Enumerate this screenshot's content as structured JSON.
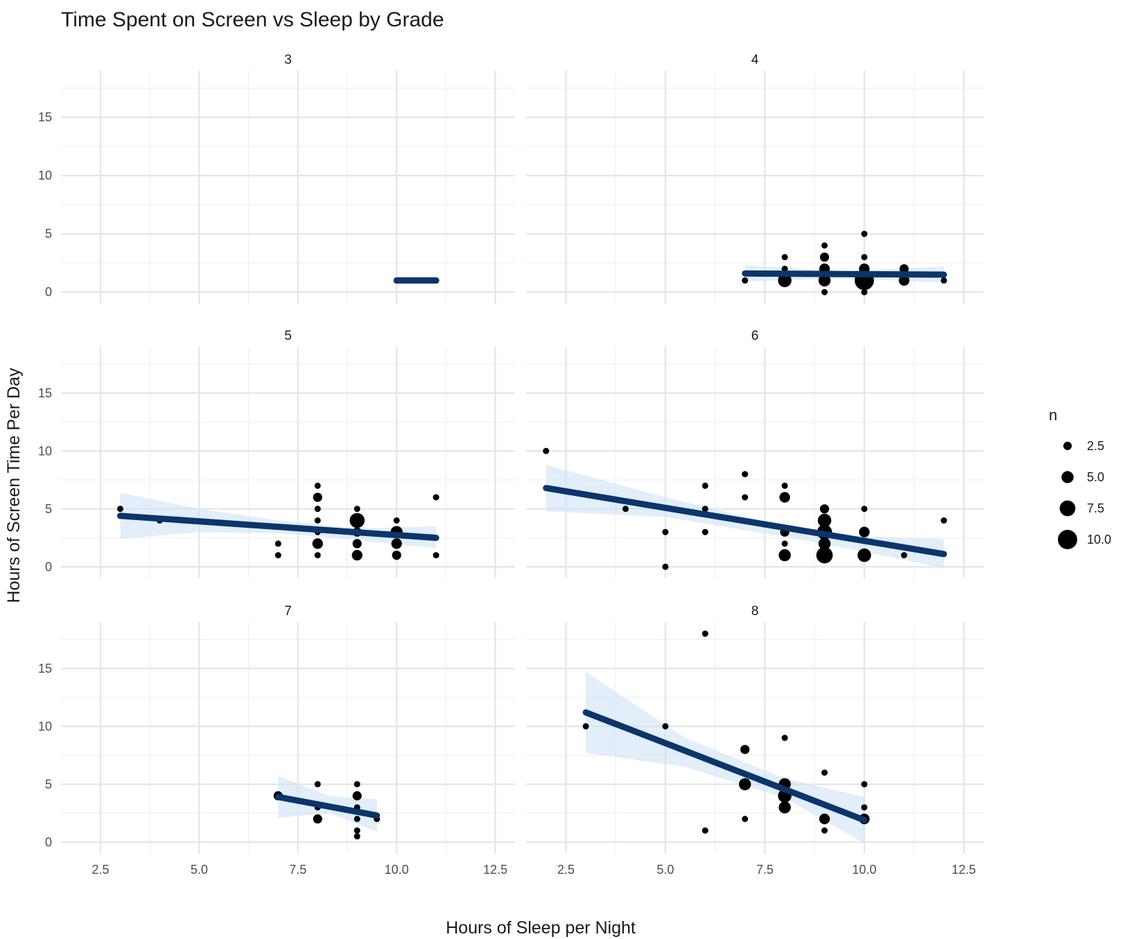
{
  "chart_data": {
    "type": "scatter",
    "title": "Time Spent on Screen vs Sleep by Grade",
    "xlabel": "Hours of Sleep per Night",
    "ylabel": "Hours of Screen Time Per Day",
    "xlim": [
      1.5,
      13
    ],
    "ylim": [
      -1,
      19
    ],
    "x_ticks": [
      "2.5",
      "5.0",
      "7.5",
      "10.0",
      "12.5"
    ],
    "y_ticks": [
      "0",
      "5",
      "10",
      "15"
    ],
    "grid": true,
    "legend": {
      "title": "n",
      "placement": "right",
      "entries": [
        "2.5",
        "5.0",
        "7.5",
        "10.0"
      ],
      "entry_values": [
        2.5,
        5.0,
        7.5,
        10.0
      ]
    },
    "point_color": "#000000",
    "trend_color": "#0b356b",
    "band_color": "#cfe3f5",
    "panels": [
      {
        "grade": "3",
        "points": [
          {
            "x": 10,
            "y": 1,
            "n": 1
          },
          {
            "x": 11,
            "y": 1,
            "n": 1
          }
        ],
        "trend": [
          [
            10,
            1
          ],
          [
            11,
            1
          ]
        ],
        "band": []
      },
      {
        "grade": "4",
        "points": [
          {
            "x": 7,
            "y": 1,
            "n": 1
          },
          {
            "x": 8,
            "y": 1,
            "n": 6
          },
          {
            "x": 8,
            "y": 2,
            "n": 1
          },
          {
            "x": 8,
            "y": 3,
            "n": 1
          },
          {
            "x": 9,
            "y": 0,
            "n": 1
          },
          {
            "x": 9,
            "y": 1,
            "n": 5
          },
          {
            "x": 9,
            "y": 2,
            "n": 4
          },
          {
            "x": 9,
            "y": 3,
            "n": 3
          },
          {
            "x": 9,
            "y": 4,
            "n": 1
          },
          {
            "x": 10,
            "y": 0,
            "n": 1
          },
          {
            "x": 10,
            "y": 1,
            "n": 10
          },
          {
            "x": 10,
            "y": 2,
            "n": 4
          },
          {
            "x": 10,
            "y": 3,
            "n": 1
          },
          {
            "x": 10,
            "y": 5,
            "n": 1
          },
          {
            "x": 11,
            "y": 1,
            "n": 4
          },
          {
            "x": 11,
            "y": 2,
            "n": 3
          },
          {
            "x": 12,
            "y": 1,
            "n": 1
          }
        ],
        "trend": [
          [
            7,
            1.6
          ],
          [
            12,
            1.5
          ]
        ],
        "band": [
          [
            7,
            2.3,
            0.9
          ],
          [
            9.5,
            1.8,
            1.2
          ],
          [
            12,
            2.2,
            0.8
          ]
        ]
      },
      {
        "grade": "5",
        "points": [
          {
            "x": 3,
            "y": 5,
            "n": 1
          },
          {
            "x": 4,
            "y": 4,
            "n": 1
          },
          {
            "x": 7,
            "y": 1,
            "n": 1
          },
          {
            "x": 7,
            "y": 2,
            "n": 1
          },
          {
            "x": 8,
            "y": 1,
            "n": 1
          },
          {
            "x": 8,
            "y": 2,
            "n": 4
          },
          {
            "x": 8,
            "y": 3,
            "n": 1
          },
          {
            "x": 8,
            "y": 4,
            "n": 1
          },
          {
            "x": 8,
            "y": 5,
            "n": 1
          },
          {
            "x": 8,
            "y": 6,
            "n": 3
          },
          {
            "x": 8,
            "y": 7,
            "n": 1
          },
          {
            "x": 9,
            "y": 1,
            "n": 4
          },
          {
            "x": 9,
            "y": 2,
            "n": 3
          },
          {
            "x": 9,
            "y": 3,
            "n": 3
          },
          {
            "x": 9,
            "y": 4,
            "n": 7
          },
          {
            "x": 9,
            "y": 5,
            "n": 1
          },
          {
            "x": 10,
            "y": 1,
            "n": 3
          },
          {
            "x": 10,
            "y": 2,
            "n": 4
          },
          {
            "x": 10,
            "y": 3,
            "n": 5
          },
          {
            "x": 10,
            "y": 4,
            "n": 1
          },
          {
            "x": 11,
            "y": 1,
            "n": 1
          },
          {
            "x": 11,
            "y": 6,
            "n": 1
          }
        ],
        "trend": [
          [
            3,
            4.4
          ],
          [
            11,
            2.5
          ]
        ],
        "band": [
          [
            3,
            6.4,
            2.4
          ],
          [
            5,
            5.0,
            3.0
          ],
          [
            7,
            4.0,
            2.9
          ],
          [
            9,
            3.3,
            2.3
          ],
          [
            11,
            3.5,
            1.6
          ]
        ]
      },
      {
        "grade": "6",
        "points": [
          {
            "x": 2,
            "y": 10,
            "n": 1
          },
          {
            "x": 4,
            "y": 5,
            "n": 1
          },
          {
            "x": 5,
            "y": 0,
            "n": 1
          },
          {
            "x": 5,
            "y": 3,
            "n": 1
          },
          {
            "x": 6,
            "y": 3,
            "n": 1
          },
          {
            "x": 6,
            "y": 5,
            "n": 1
          },
          {
            "x": 6,
            "y": 7,
            "n": 1
          },
          {
            "x": 7,
            "y": 6,
            "n": 1
          },
          {
            "x": 7,
            "y": 8,
            "n": 1
          },
          {
            "x": 8,
            "y": 1,
            "n": 5
          },
          {
            "x": 8,
            "y": 2,
            "n": 1
          },
          {
            "x": 8,
            "y": 3,
            "n": 3
          },
          {
            "x": 8,
            "y": 6,
            "n": 4
          },
          {
            "x": 8,
            "y": 7,
            "n": 1
          },
          {
            "x": 9,
            "y": 1,
            "n": 8
          },
          {
            "x": 9,
            "y": 2,
            "n": 5
          },
          {
            "x": 9,
            "y": 3,
            "n": 7
          },
          {
            "x": 9,
            "y": 4,
            "n": 6
          },
          {
            "x": 9,
            "y": 5,
            "n": 3
          },
          {
            "x": 10,
            "y": 1,
            "n": 6
          },
          {
            "x": 10,
            "y": 3,
            "n": 4
          },
          {
            "x": 10,
            "y": 5,
            "n": 1
          },
          {
            "x": 11,
            "y": 1,
            "n": 1
          },
          {
            "x": 12,
            "y": 4,
            "n": 1
          }
        ],
        "trend": [
          [
            2,
            6.8
          ],
          [
            12,
            1.1
          ]
        ],
        "band": [
          [
            2,
            8.8,
            4.8
          ],
          [
            5,
            6.0,
            4.3
          ],
          [
            8,
            3.5,
            2.6
          ],
          [
            10,
            2.6,
            1.3
          ],
          [
            12,
            2.4,
            -0.1
          ]
        ]
      },
      {
        "grade": "7",
        "points": [
          {
            "x": 7,
            "y": 4,
            "n": 3
          },
          {
            "x": 8,
            "y": 2,
            "n": 3
          },
          {
            "x": 8,
            "y": 3,
            "n": 1
          },
          {
            "x": 8,
            "y": 5,
            "n": 1
          },
          {
            "x": 9,
            "y": 0.5,
            "n": 1
          },
          {
            "x": 9,
            "y": 1,
            "n": 1
          },
          {
            "x": 9,
            "y": 2,
            "n": 1
          },
          {
            "x": 9,
            "y": 3,
            "n": 1
          },
          {
            "x": 9,
            "y": 4,
            "n": 3
          },
          {
            "x": 9,
            "y": 5,
            "n": 1
          },
          {
            "x": 9.5,
            "y": 2,
            "n": 1
          }
        ],
        "trend": [
          [
            7,
            3.9
          ],
          [
            9.5,
            2.3
          ]
        ],
        "band": [
          [
            7,
            5.7,
            2.1
          ],
          [
            8.3,
            4.0,
            2.5
          ],
          [
            9.5,
            3.7,
            0.9
          ]
        ]
      },
      {
        "grade": "8",
        "points": [
          {
            "x": 3,
            "y": 10,
            "n": 1
          },
          {
            "x": 5,
            "y": 10,
            "n": 1
          },
          {
            "x": 6,
            "y": 1,
            "n": 1
          },
          {
            "x": 6,
            "y": 18,
            "n": 1
          },
          {
            "x": 7,
            "y": 2,
            "n": 1
          },
          {
            "x": 7,
            "y": 5,
            "n": 5
          },
          {
            "x": 7,
            "y": 8,
            "n": 3
          },
          {
            "x": 8,
            "y": 3,
            "n": 5
          },
          {
            "x": 8,
            "y": 4,
            "n": 6
          },
          {
            "x": 8,
            "y": 5,
            "n": 5
          },
          {
            "x": 8,
            "y": 9,
            "n": 1
          },
          {
            "x": 9,
            "y": 1,
            "n": 1
          },
          {
            "x": 9,
            "y": 2,
            "n": 4
          },
          {
            "x": 9,
            "y": 6,
            "n": 1
          },
          {
            "x": 10,
            "y": 2,
            "n": 4
          },
          {
            "x": 10,
            "y": 3,
            "n": 1
          },
          {
            "x": 10,
            "y": 5,
            "n": 1
          }
        ],
        "trend": [
          [
            3,
            11.2
          ],
          [
            10,
            1.9
          ]
        ],
        "band": [
          [
            3,
            14.7,
            7.7
          ],
          [
            5.5,
            9.0,
            6.5
          ],
          [
            8,
            5.5,
            3.8
          ],
          [
            10,
            3.9,
            -0.1
          ]
        ]
      }
    ]
  }
}
